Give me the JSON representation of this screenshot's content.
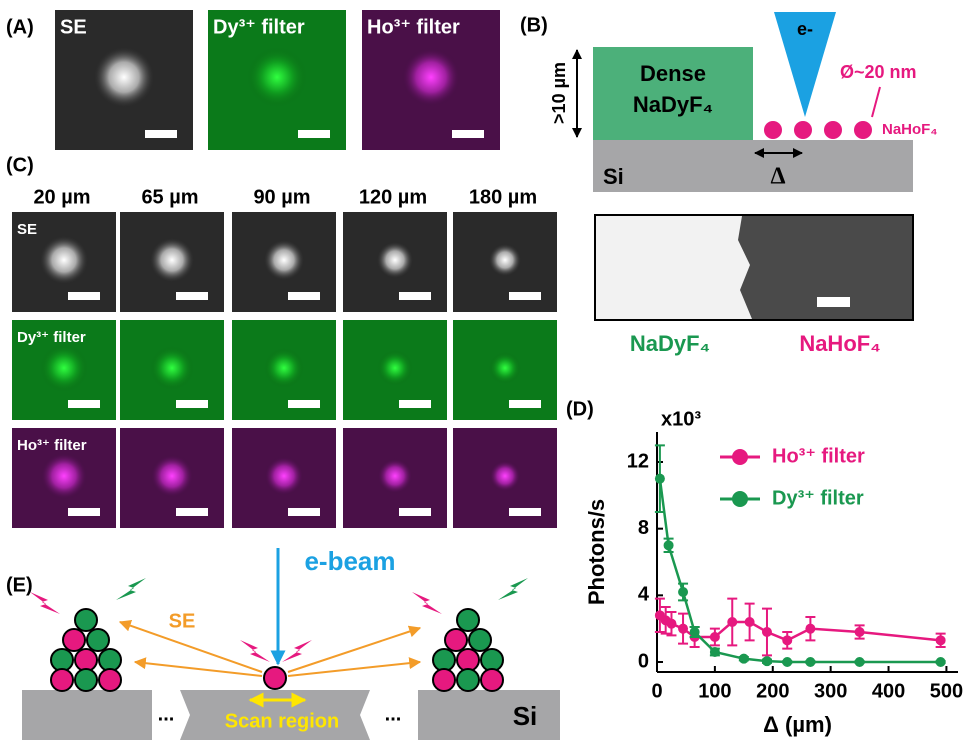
{
  "panel_labels": {
    "a": "(A)",
    "b": "(B)",
    "c": "(C)",
    "d": "(D)",
    "e": "(E)"
  },
  "panel_a": {
    "images": [
      "SE",
      "Dy³⁺ filter",
      "Ho³⁺ filter"
    ]
  },
  "panel_b": {
    "beam": "e-",
    "dense": [
      "Dense",
      "NaDyF₄"
    ],
    "height": ">10 µm",
    "diameter": "Ø~20 nm",
    "particle": "NaHoF₄",
    "substrate": "Si",
    "gap": "Δ",
    "image_labels": [
      "NaDyF₄",
      "NaHoF₄"
    ]
  },
  "panel_c": {
    "columns": [
      "20 µm",
      "65 µm",
      "90 µm",
      "120 µm",
      "180 µm"
    ],
    "rows": [
      "SE",
      "Dy³⁺ filter",
      "Ho³⁺ filter"
    ]
  },
  "panel_e": {
    "beam": "e-beam",
    "se": "SE",
    "scan": "Scan region",
    "substrate": "Si",
    "ellipsis": "..."
  },
  "chart_data": {
    "type": "line",
    "xlabel": "Δ (µm)",
    "ylabel": "Photons/s",
    "y_multiplier": "x10³",
    "xlim": [
      0,
      520
    ],
    "ylim": [
      -0.6,
      13.8
    ],
    "xticks": [
      0,
      100,
      200,
      300,
      400,
      500
    ],
    "yticks": [
      0,
      4,
      8,
      12
    ],
    "series": [
      {
        "name": "Ho³⁺ filter",
        "color": "#e6197f",
        "x": [
          5,
          15,
          25,
          45,
          65,
          100,
          130,
          160,
          190,
          225,
          265,
          350,
          490
        ],
        "values": [
          2.8,
          2.5,
          2.3,
          2.0,
          1.5,
          1.5,
          2.4,
          2.4,
          1.8,
          1.3,
          2.0,
          1.8,
          1.3
        ],
        "errors": [
          1.0,
          0.8,
          0.7,
          0.9,
          0.6,
          0.5,
          1.4,
          1.1,
          1.4,
          0.5,
          0.7,
          0.4,
          0.4
        ]
      },
      {
        "name": "Dy³⁺ filter",
        "color": "#1a9850",
        "x": [
          5,
          20,
          45,
          65,
          100,
          150,
          190,
          225,
          265,
          350,
          490
        ],
        "values": [
          11,
          7,
          4.2,
          1.8,
          0.6,
          0.2,
          0.05,
          0,
          0,
          0,
          0
        ],
        "errors": [
          2.0,
          0.4,
          0.5,
          0.3,
          0.2,
          0.1,
          0.1,
          0.05,
          0.05,
          0.05,
          0.05
        ]
      }
    ],
    "legend": "upper right"
  }
}
